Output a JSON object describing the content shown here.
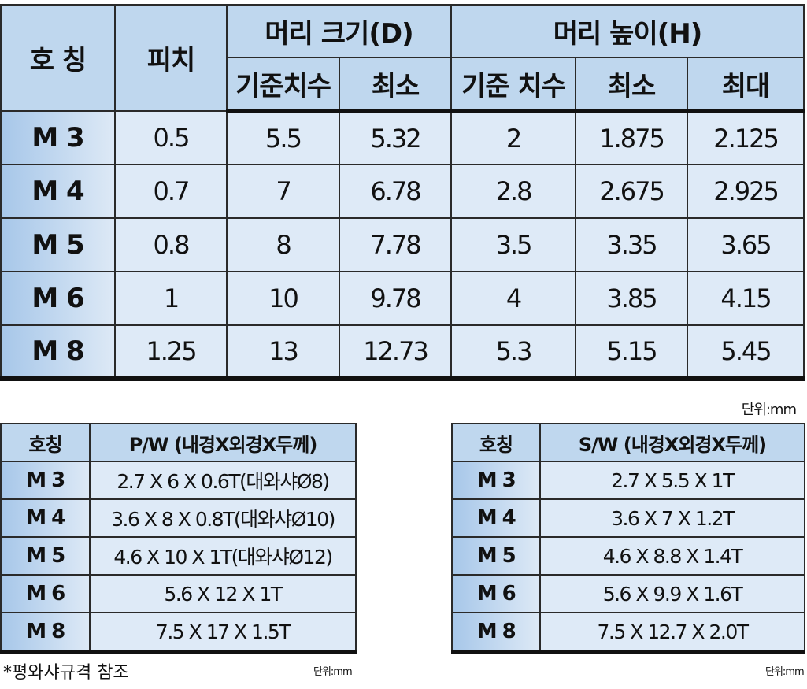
{
  "main_table": {
    "headers": {
      "name": "호 칭",
      "pitch": "피치",
      "head_size": "머리 크기(D)",
      "head_height": "머리 높이(H)",
      "sub": [
        "기준치수",
        "최소",
        "기준 치수",
        "최소",
        "최대"
      ]
    },
    "rows": [
      [
        "M 3",
        "0.5",
        "5.5",
        "5.32",
        "2",
        "1.875",
        "2.125"
      ],
      [
        "M 4",
        "0.7",
        "7",
        "6.78",
        "2.8",
        "2.675",
        "2.925"
      ],
      [
        "M 5",
        "0.8",
        "8",
        "7.78",
        "3.5",
        "3.35",
        "3.65"
      ],
      [
        "M 6",
        "1",
        "10",
        "9.78",
        "4",
        "3.85",
        "4.15"
      ],
      [
        "M 8",
        "1.25",
        "13",
        "12.73",
        "5.3",
        "5.15",
        "5.45"
      ]
    ]
  },
  "unit": "단위:mm",
  "pw_table": {
    "headers": [
      "호칭",
      "P/W (내경X외경X두께)"
    ],
    "rows": [
      [
        "M 3",
        "2.7 X 6 X 0.6T(대와샤Ø8)"
      ],
      [
        "M 4",
        "3.6 X 8 X 0.8T(대와샤Ø10)"
      ],
      [
        "M 5",
        "4.6 X 10 X 1T(대와샤Ø12)"
      ],
      [
        "M 6",
        "5.6 X 12 X 1T"
      ],
      [
        "M 8",
        "7.5 X 17 X 1.5T"
      ]
    ]
  },
  "sw_table": {
    "headers": [
      "호칭",
      "S/W (내경X외경X두께)"
    ],
    "rows": [
      [
        "M 3",
        "2.7 X 5.5 X 1T"
      ],
      [
        "M 4",
        "3.6 X 7 X 1.2T"
      ],
      [
        "M 5",
        "4.6 X 8.8 X 1.4T"
      ],
      [
        "M 6",
        "5.6 X 9.9 X 1.6T"
      ],
      [
        "M 8",
        "7.5 X 12.7 X 2.0T"
      ]
    ]
  },
  "footnote": "*평와샤규격 참조",
  "pw_unit": "단위:mm",
  "sw_unit": "단위:mm"
}
